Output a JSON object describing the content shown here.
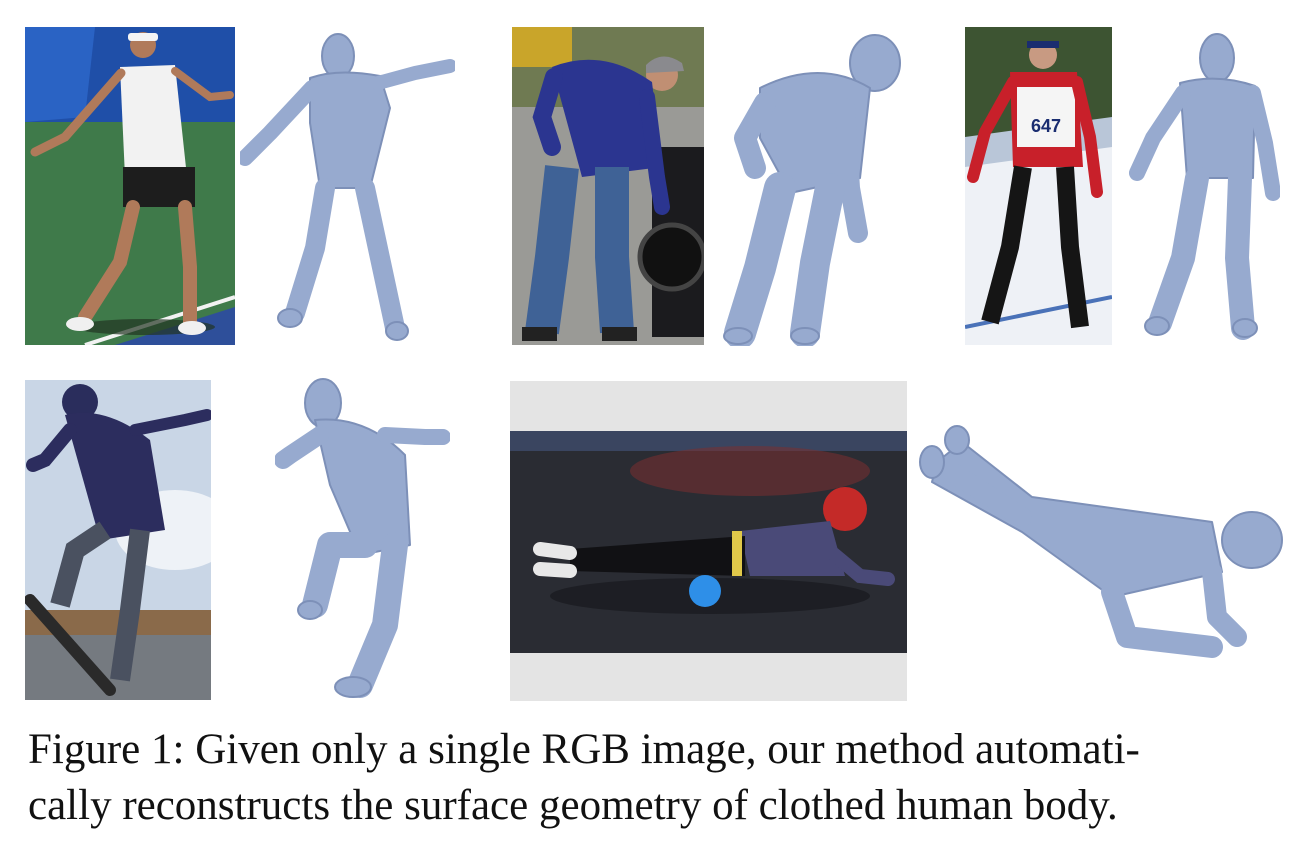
{
  "figure": {
    "caption": "Figure 1: Given only a single RGB image, our method automatically reconstructs the surface geometry of clothed human body.",
    "caption_lines": [
      "Figure 1: Given only a single RGB image, our method automati-",
      "cally reconstructs the surface geometry of clothed human body."
    ],
    "bib_number": "647",
    "panels": [
      {
        "photo": "tennis-player-photo",
        "mesh": "tennis-player-mesh"
      },
      {
        "photo": "man-bending-by-motorcycle-photo",
        "mesh": "man-bending-mesh"
      },
      {
        "photo": "cross-country-skier-photo",
        "mesh": "skier-mesh"
      },
      {
        "photo": "skateboarder-photo",
        "mesh": "skateboarder-mesh"
      },
      {
        "photo": "woman-foam-roller-plank-photo",
        "mesh": "woman-plank-mesh"
      }
    ]
  },
  "colors": {
    "mesh": "#97aacf",
    "mesh_shade": "#7d90b8",
    "tennis_court": "#3f7a4a",
    "tennis_wall": "#1f4fa8",
    "hoodie": "#2b3590",
    "snow": "#eef1f6",
    "jacket_red": "#c8202a",
    "sky": "#c9d6e6",
    "gym_floor": "#2a2c33",
    "bg_gray": "#e4e4e4"
  }
}
